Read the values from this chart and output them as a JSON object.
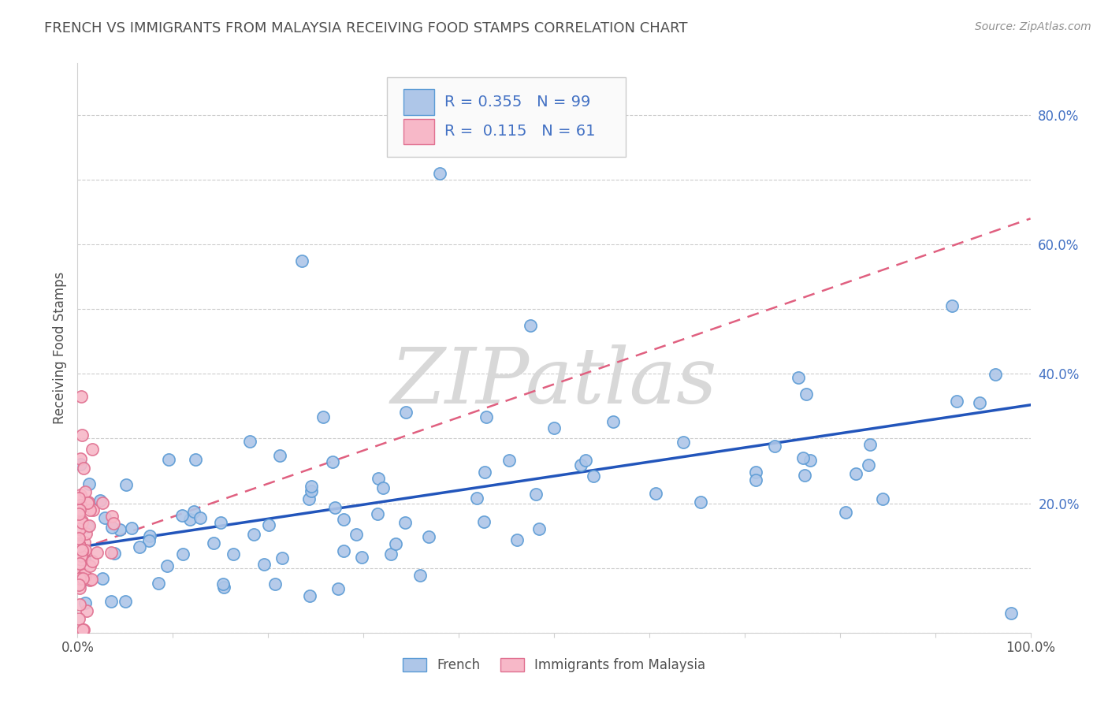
{
  "title": "FRENCH VS IMMIGRANTS FROM MALAYSIA RECEIVING FOOD STAMPS CORRELATION CHART",
  "source": "Source: ZipAtlas.com",
  "ylabel": "Receiving Food Stamps",
  "xlim": [
    0,
    1.0
  ],
  "ylim": [
    0,
    0.88
  ],
  "french_R": 0.355,
  "french_N": 99,
  "malaysia_R": 0.115,
  "malaysia_N": 61,
  "french_color": "#aec6e8",
  "french_edge_color": "#5b9bd5",
  "malaysia_color": "#f7b8c8",
  "malaysia_edge_color": "#e07090",
  "french_line_color": "#2255bb",
  "malaysia_line_color": "#e06080",
  "watermark_color": "#d8d8d8",
  "background_color": "#ffffff",
  "grid_color": "#cccccc",
  "title_color": "#505050",
  "stats_color": "#4472C4",
  "tick_label_color": "#4472C4",
  "seed": 1234
}
